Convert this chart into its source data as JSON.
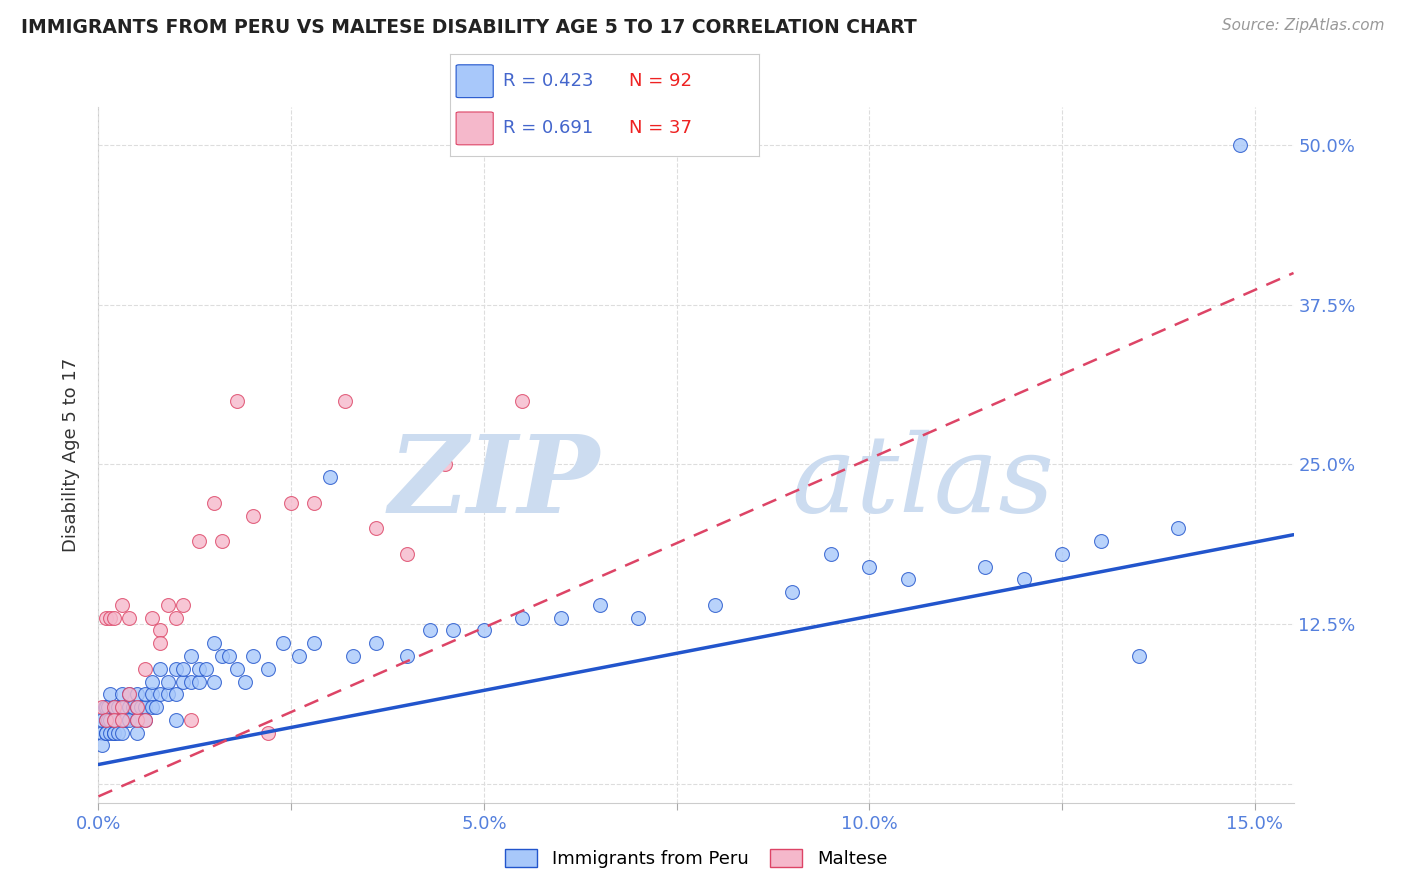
{
  "title": "IMMIGRANTS FROM PERU VS MALTESE DISABILITY AGE 5 TO 17 CORRELATION CHART",
  "source": "Source: ZipAtlas.com",
  "ylabel": "Disability Age 5 to 17",
  "legend_labels": [
    "Immigrants from Peru",
    "Maltese"
  ],
  "r_peru": 0.423,
  "n_peru": 92,
  "r_maltese": 0.691,
  "n_maltese": 37,
  "color_peru": "#a8c8fa",
  "color_maltese": "#f5b8cb",
  "line_color_peru": "#2255cc",
  "line_color_maltese": "#dd4466",
  "watermark_color": "#ccdcf0",
  "xlim": [
    0.0,
    0.155
  ],
  "ylim": [
    -0.015,
    0.53
  ],
  "xtick_vals": [
    0.0,
    0.025,
    0.05,
    0.075,
    0.1,
    0.125,
    0.15
  ],
  "xticklabels": [
    "0.0%",
    "",
    "5.0%",
    "",
    "10.0%",
    "",
    "15.0%"
  ],
  "ytick_vals": [
    0.0,
    0.125,
    0.25,
    0.375,
    0.5
  ],
  "yticklabels": [
    "",
    "12.5%",
    "25.0%",
    "37.5%",
    "50.0%"
  ],
  "grid_color": "#dddddd",
  "background_color": "#ffffff",
  "peru_x": [
    0.0005,
    0.0005,
    0.0005,
    0.0008,
    0.001,
    0.001,
    0.001,
    0.001,
    0.0012,
    0.0012,
    0.0015,
    0.0015,
    0.0015,
    0.002,
    0.002,
    0.002,
    0.002,
    0.002,
    0.0022,
    0.0022,
    0.0025,
    0.0025,
    0.003,
    0.003,
    0.003,
    0.003,
    0.0035,
    0.0035,
    0.004,
    0.004,
    0.004,
    0.0045,
    0.005,
    0.005,
    0.005,
    0.005,
    0.0055,
    0.006,
    0.006,
    0.006,
    0.007,
    0.007,
    0.007,
    0.0075,
    0.008,
    0.008,
    0.009,
    0.009,
    0.01,
    0.01,
    0.01,
    0.011,
    0.011,
    0.012,
    0.012,
    0.013,
    0.013,
    0.014,
    0.015,
    0.015,
    0.016,
    0.017,
    0.018,
    0.019,
    0.02,
    0.022,
    0.024,
    0.026,
    0.028,
    0.03,
    0.033,
    0.036,
    0.04,
    0.043,
    0.046,
    0.05,
    0.055,
    0.06,
    0.065,
    0.07,
    0.08,
    0.09,
    0.095,
    0.1,
    0.105,
    0.115,
    0.12,
    0.125,
    0.13,
    0.135,
    0.14,
    0.148
  ],
  "peru_y": [
    0.04,
    0.05,
    0.03,
    0.06,
    0.04,
    0.05,
    0.06,
    0.04,
    0.05,
    0.06,
    0.05,
    0.04,
    0.07,
    0.04,
    0.05,
    0.06,
    0.04,
    0.05,
    0.06,
    0.05,
    0.06,
    0.04,
    0.05,
    0.06,
    0.04,
    0.07,
    0.05,
    0.06,
    0.06,
    0.05,
    0.07,
    0.06,
    0.05,
    0.06,
    0.04,
    0.07,
    0.06,
    0.06,
    0.07,
    0.05,
    0.07,
    0.06,
    0.08,
    0.06,
    0.07,
    0.09,
    0.07,
    0.08,
    0.07,
    0.09,
    0.05,
    0.08,
    0.09,
    0.08,
    0.1,
    0.08,
    0.09,
    0.09,
    0.08,
    0.11,
    0.1,
    0.1,
    0.09,
    0.08,
    0.1,
    0.09,
    0.11,
    0.1,
    0.11,
    0.24,
    0.1,
    0.11,
    0.1,
    0.12,
    0.12,
    0.12,
    0.13,
    0.13,
    0.14,
    0.13,
    0.14,
    0.15,
    0.18,
    0.17,
    0.16,
    0.17,
    0.16,
    0.18,
    0.19,
    0.1,
    0.2,
    0.5
  ],
  "maltese_x": [
    0.0005,
    0.001,
    0.001,
    0.0015,
    0.002,
    0.002,
    0.002,
    0.003,
    0.003,
    0.003,
    0.004,
    0.004,
    0.005,
    0.005,
    0.006,
    0.006,
    0.007,
    0.008,
    0.008,
    0.009,
    0.01,
    0.011,
    0.012,
    0.013,
    0.015,
    0.016,
    0.018,
    0.02,
    0.022,
    0.025,
    0.028,
    0.032,
    0.036,
    0.04,
    0.045,
    0.05,
    0.055
  ],
  "maltese_y": [
    0.06,
    0.13,
    0.05,
    0.13,
    0.06,
    0.05,
    0.13,
    0.14,
    0.06,
    0.05,
    0.07,
    0.13,
    0.05,
    0.06,
    0.09,
    0.05,
    0.13,
    0.12,
    0.11,
    0.14,
    0.13,
    0.14,
    0.05,
    0.19,
    0.22,
    0.19,
    0.3,
    0.21,
    0.04,
    0.22,
    0.22,
    0.3,
    0.2,
    0.18,
    0.25,
    0.22,
    0.3
  ],
  "peru_line_x": [
    0.0,
    0.155
  ],
  "peru_line_y": [
    0.015,
    0.195
  ],
  "maltese_line_x": [
    0.0,
    0.155
  ],
  "maltese_line_y": [
    -0.01,
    0.4
  ]
}
